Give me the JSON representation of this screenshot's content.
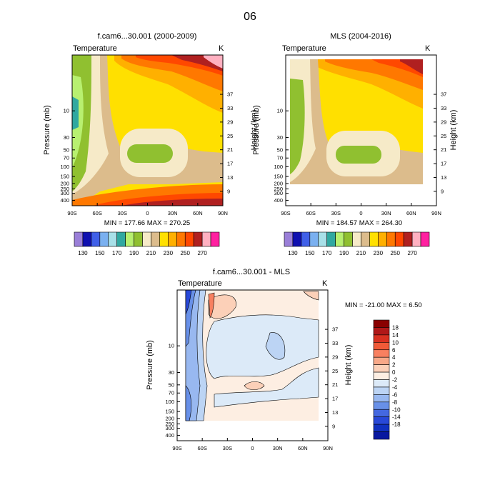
{
  "page_title": "06",
  "panels": [
    {
      "title": "f.cam6...30.001 (2000-2009)",
      "field": "Temperature",
      "units": "K",
      "ylabel": "Pressure (mb)",
      "ylabel2": "Height (km)",
      "minmax": "MIN = 177.66  MAX = 270.25"
    },
    {
      "title": "MLS (2004-2016)",
      "field": "Temperature",
      "units": "K",
      "ylabel": "Pressure (mb)",
      "ylabel2": "Height (km)",
      "minmax": "MIN = 184.57  MAX = 264.30"
    },
    {
      "title": "f.cam6...30.001 - MLS",
      "field": "Temperature",
      "units": "K",
      "ylabel": "Pressure (mb)",
      "ylabel2": "Height (km)",
      "minmax": "MIN = -21.00  MAX =   6.50"
    }
  ],
  "chart_data": [
    {
      "type": "heatmap",
      "title": "f.cam6...30.001 (2000-2009)",
      "x_ticks": [
        "90S",
        "60S",
        "30S",
        "0",
        "30N",
        "60N",
        "90N"
      ],
      "x_values": [
        -90,
        -60,
        -30,
        0,
        30,
        60,
        90
      ],
      "y_ticks": [
        "10",
        "30",
        "50",
        "70",
        "100",
        "150",
        "200",
        "250",
        "300",
        "400"
      ],
      "y_values": [
        10,
        30,
        50,
        70,
        100,
        150,
        200,
        250,
        300,
        400
      ],
      "y2_ticks": [
        "37",
        "33",
        "29",
        "25",
        "21",
        "17",
        "13",
        "9"
      ],
      "y2_values": [
        37,
        33,
        29,
        25,
        21,
        17,
        13,
        9
      ],
      "ylim": [
        1,
        500
      ],
      "colorbar_labels": [
        "130",
        "150",
        "170",
        "190",
        "210",
        "230",
        "250",
        "270"
      ],
      "colorbar_colors": [
        "#9a7fd8",
        "#1010b0",
        "#4060e8",
        "#7ab0f0",
        "#a8e0e8",
        "#30a8a0",
        "#b8f070",
        "#90c030",
        "#f6eac8",
        "#dcbc8c",
        "#ffe000",
        "#ffb000",
        "#ff7800",
        "#ff4800",
        "#b02020",
        "#ffb0c0",
        "#ff20a0"
      ]
    },
    {
      "type": "heatmap",
      "title": "MLS (2004-2016)",
      "x_ticks": [
        "90S",
        "60S",
        "30S",
        "0",
        "30N",
        "60N",
        "90N"
      ],
      "x_values": [
        -90,
        -60,
        -30,
        0,
        30,
        60,
        90
      ],
      "y_ticks": [
        "10",
        "30",
        "50",
        "70",
        "100",
        "150",
        "200",
        "250",
        "300",
        "400"
      ],
      "y_values": [
        10,
        30,
        50,
        70,
        100,
        150,
        200,
        250,
        300,
        400
      ],
      "y2_ticks": [
        "37",
        "33",
        "29",
        "25",
        "21",
        "17",
        "13",
        "9"
      ],
      "y2_values": [
        37,
        33,
        29,
        25,
        21,
        17,
        13,
        9
      ],
      "ylim": [
        1,
        500
      ],
      "colorbar_labels": [
        "130",
        "150",
        "170",
        "190",
        "210",
        "230",
        "250",
        "270"
      ],
      "colorbar_colors": [
        "#9a7fd8",
        "#1010b0",
        "#4060e8",
        "#7ab0f0",
        "#a8e0e8",
        "#30a8a0",
        "#b8f070",
        "#90c030",
        "#f6eac8",
        "#dcbc8c",
        "#ffe000",
        "#ffb000",
        "#ff7800",
        "#ff4800",
        "#b02020",
        "#ffb0c0",
        "#ff20a0"
      ]
    },
    {
      "type": "heatmap",
      "title": "f.cam6...30.001 - MLS",
      "x_ticks": [
        "90S",
        "60S",
        "30S",
        "0",
        "30N",
        "60N",
        "90N"
      ],
      "x_values": [
        -90,
        -60,
        -30,
        0,
        30,
        60,
        90
      ],
      "y_ticks": [
        "10",
        "30",
        "50",
        "70",
        "100",
        "150",
        "200",
        "250",
        "300",
        "400"
      ],
      "y_values": [
        10,
        30,
        50,
        70,
        100,
        150,
        200,
        250,
        300,
        400
      ],
      "y2_ticks": [
        "37",
        "33",
        "29",
        "25",
        "21",
        "17",
        "13",
        "9"
      ],
      "y2_values": [
        37,
        33,
        29,
        25,
        21,
        17,
        13,
        9
      ],
      "ylim": [
        1,
        500
      ],
      "colorbar_labels": [
        "18",
        "14",
        "10",
        "6",
        "4",
        "2",
        "0",
        "-2",
        "-4",
        "-6",
        "-8",
        "-10",
        "-14",
        "-18"
      ],
      "colorbar_colors": [
        "#8a0000",
        "#b01818",
        "#d83020",
        "#f05a38",
        "#f88060",
        "#f8a888",
        "#fcd0b8",
        "#fdeee2",
        "#dceaf8",
        "#bcd4f4",
        "#98b8f0",
        "#6890e8",
        "#4468e0",
        "#2848d8",
        "#1030c0",
        "#0818a0"
      ]
    }
  ]
}
